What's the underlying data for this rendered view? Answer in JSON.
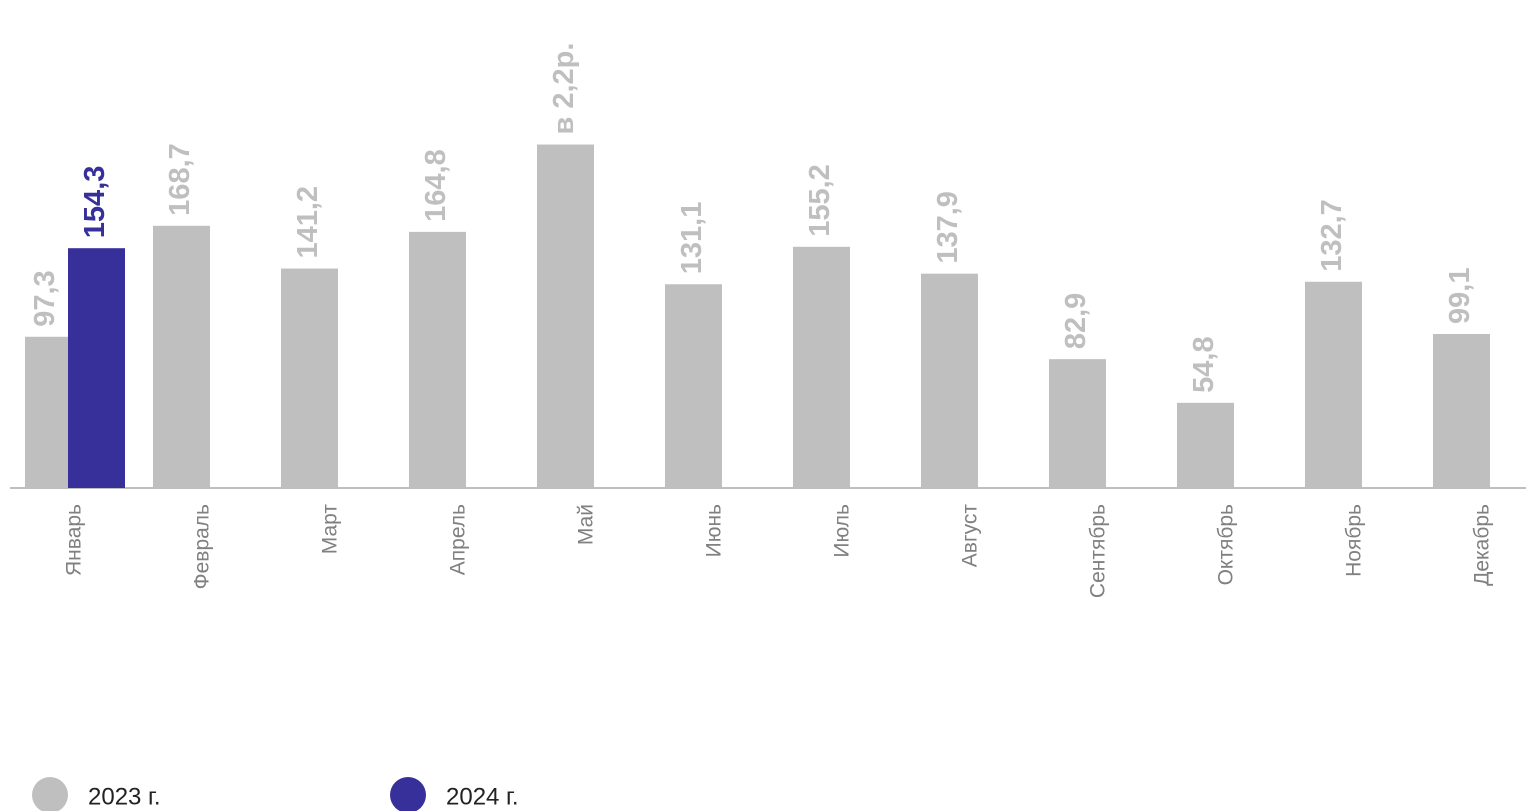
{
  "chart_data": {
    "type": "bar",
    "categories": [
      "Январь",
      "Февраль",
      "Март",
      "Апрель",
      "Май",
      "Июнь",
      "Июль",
      "Август",
      "Сентябрь",
      "Октябрь",
      "Ноябрь",
      "Декабрь"
    ],
    "series": [
      {
        "name": "2023 г.",
        "color": "#bfbfbf",
        "values": [
          97.3,
          168.7,
          141.2,
          164.8,
          221,
          131.1,
          155.2,
          137.9,
          82.9,
          54.8,
          132.7,
          99.1
        ],
        "value_labels": [
          "97,3",
          "168,7",
          "141,2",
          "164,8",
          "в 2,2р.",
          "131,1",
          "155,2",
          "137,9",
          "82,9",
          "54,8",
          "132,7",
          "99,1"
        ]
      },
      {
        "name": "2024 г.",
        "color": "#37309a",
        "values": [
          154.3,
          null,
          null,
          null,
          null,
          null,
          null,
          null,
          null,
          null,
          null,
          null
        ],
        "value_labels": [
          "154,3",
          null,
          null,
          null,
          null,
          null,
          null,
          null,
          null,
          null,
          null,
          null
        ]
      }
    ],
    "ylim": [
      0,
      314
    ],
    "legend": "bottom-left"
  }
}
